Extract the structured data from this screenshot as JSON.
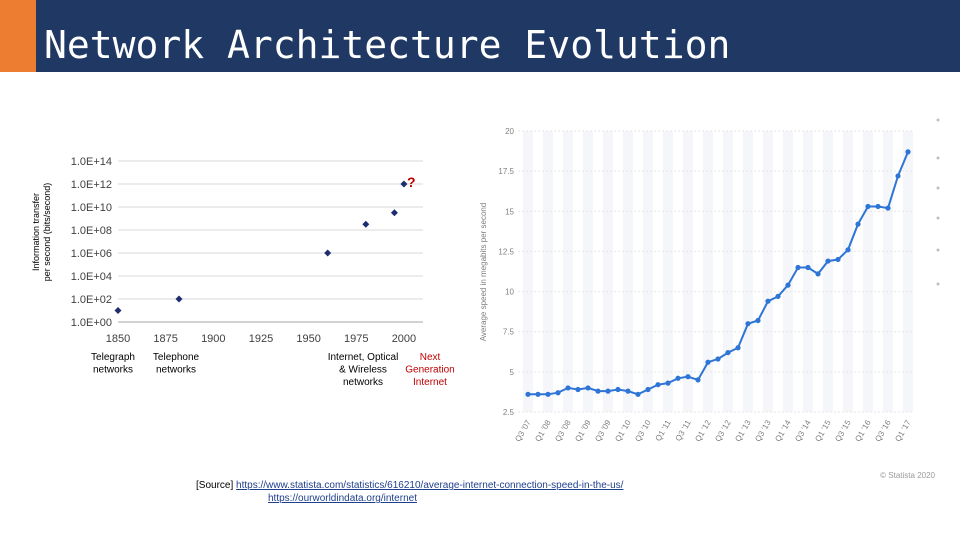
{
  "slide": {
    "title": "Network Architecture Evolution",
    "source_label": "[Source]",
    "source_urls": [
      "https://www.statista.com/statistics/616210/average-internet-connection-speed-in-the-us/",
      "https://ourworldindata.org/internet"
    ]
  },
  "colors": {
    "header": "#1f3864",
    "accent": "#ed7d31",
    "marker": "#1f2d6e",
    "line": "#2e75d6",
    "red": "#c00000"
  },
  "chart_data": [
    {
      "type": "scatter",
      "title": "",
      "ylabel": "Information transfer per second (bits/second)",
      "xlabel": "",
      "y_scale": "log10",
      "ylim": [
        0,
        14
      ],
      "xlim": [
        1850,
        2010
      ],
      "x_ticks": [
        1850,
        1875,
        1900,
        1925,
        1950,
        1975,
        2000
      ],
      "y_ticks": [
        "1.0E+00",
        "1.0E+02",
        "1.0E+04",
        "1.0E+06",
        "1.0E+08",
        "1.0E+10",
        "1.0E+12",
        "1.0E+14"
      ],
      "grid": true,
      "points": [
        {
          "x": 1850,
          "log10_y": 1
        },
        {
          "x": 1882,
          "log10_y": 2
        },
        {
          "x": 1960,
          "log10_y": 6
        },
        {
          "x": 1980,
          "log10_y": 8.5
        },
        {
          "x": 1995,
          "log10_y": 9.5
        },
        {
          "x": 2000,
          "log10_y": 12
        }
      ],
      "question_mark": "?",
      "annotations": [
        {
          "text": [
            "Telegraph",
            "networks"
          ],
          "color": "#000000"
        },
        {
          "text": [
            "Telephone",
            "networks"
          ],
          "color": "#000000"
        },
        {
          "text": [
            "Internet, Optical",
            "& Wireless",
            "networks"
          ],
          "color": "#000000"
        },
        {
          "text": [
            "Next",
            "Generation",
            "Internet"
          ],
          "color": "#c00000"
        }
      ]
    },
    {
      "type": "line",
      "title": "",
      "ylabel": "Average speed in megabits per second",
      "xlabel": "",
      "ylim": [
        2.5,
        20
      ],
      "y_ticks": [
        2.5,
        5,
        7.5,
        10,
        12.5,
        15,
        17.5,
        20
      ],
      "grid": true,
      "categories": [
        "Q3 '07",
        "Q4 '07",
        "Q1 '08",
        "Q2 '08",
        "Q3 '08",
        "Q4 '08",
        "Q1 '09",
        "Q2 '09",
        "Q3 '09",
        "Q4 '09",
        "Q1 '10",
        "Q2 '10",
        "Q3 '10",
        "Q4 '10",
        "Q1 '11",
        "Q2 '11",
        "Q3 '11",
        "Q4 '11",
        "Q1 '12",
        "Q2 '12",
        "Q3 '12",
        "Q4 '12",
        "Q1 '13",
        "Q2 '13",
        "Q3 '13",
        "Q4 '13",
        "Q1 '14",
        "Q2 '14",
        "Q3 '14",
        "Q4 '14",
        "Q1 '15",
        "Q2 '15",
        "Q3 '15",
        "Q4 '15",
        "Q1 '16",
        "Q2 '16",
        "Q3 '16",
        "Q4 '16",
        "Q1 '17"
      ],
      "x_tick_labels": [
        "Q3 '07",
        "Q1 '08",
        "Q3 '08",
        "Q1 '09",
        "Q3 '09",
        "Q1 '10",
        "Q3 '10",
        "Q1 '11",
        "Q3 '11",
        "Q1 '12",
        "Q3 '12",
        "Q1 '13",
        "Q3 '13",
        "Q1 '14",
        "Q3 '14",
        "Q1 '15",
        "Q3 '15",
        "Q1 '16",
        "Q3 '16",
        "Q1 '17"
      ],
      "values": [
        3.6,
        3.6,
        3.6,
        3.7,
        4.0,
        3.9,
        4.0,
        3.8,
        3.8,
        3.9,
        3.8,
        3.6,
        3.9,
        4.2,
        4.3,
        4.6,
        4.7,
        4.5,
        5.6,
        5.8,
        6.2,
        6.5,
        8.0,
        8.2,
        9.4,
        9.7,
        10.4,
        11.5,
        11.5,
        11.1,
        11.9,
        12.0,
        12.6,
        14.2,
        15.3,
        15.3,
        15.2,
        17.2,
        18.7
      ],
      "watermark": "© Statista 2020"
    }
  ]
}
